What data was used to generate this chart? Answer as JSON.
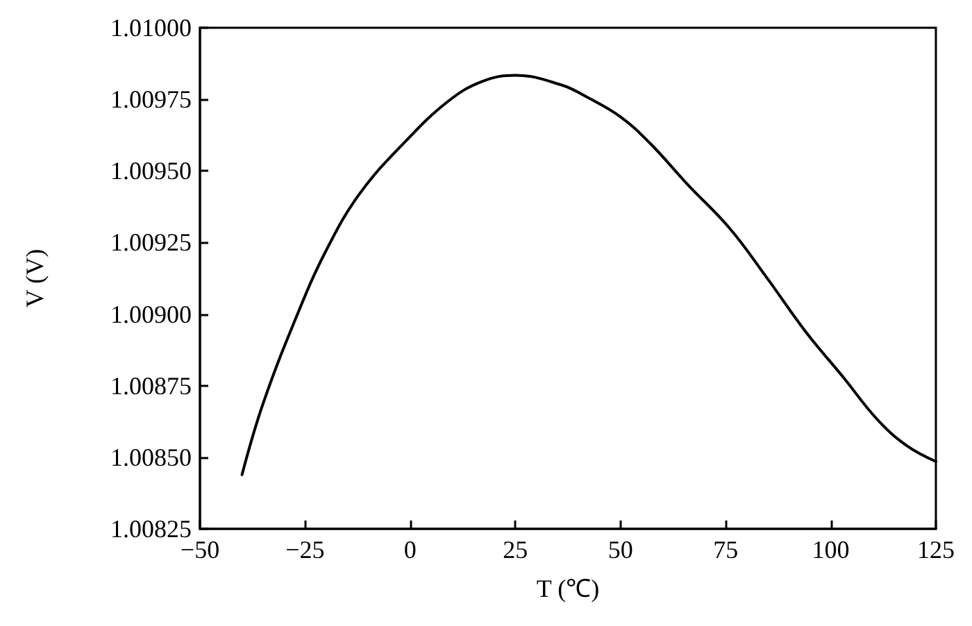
{
  "chart_data": {
    "type": "line",
    "xlabel": "T (℃)",
    "ylabel": "V (V)",
    "x": [
      -40,
      -35,
      -27,
      -20,
      -12,
      -1,
      9,
      17,
      25,
      36,
      42,
      50,
      57,
      66,
      76,
      85,
      94,
      103,
      111,
      118,
      125
    ],
    "series": [
      {
        "color": "#000000",
        "values": [
          1.008439,
          1.008687,
          1.008993,
          1.009222,
          1.009421,
          1.009605,
          1.009743,
          1.009812,
          1.009834,
          1.0098,
          1.009758,
          1.009689,
          1.009597,
          1.009452,
          1.009299,
          1.009123,
          1.008939,
          1.008779,
          1.008633,
          1.008541,
          1.008485
        ]
      }
    ],
    "xlim": [
      -50,
      125
    ],
    "xticks": [
      {
        "value": -50,
        "label": "−50"
      },
      {
        "value": -25,
        "label": "−25"
      },
      0,
      25,
      50,
      75,
      100,
      125
    ],
    "ylim": [
      1.00825,
      1.01
    ],
    "yticks": [
      1.00825,
      {
        "value": 1.0085,
        "label": "1.00850"
      },
      1.00875,
      {
        "value": 1.009,
        "label": "1.00900"
      },
      1.00925,
      {
        "value": 1.0095,
        "label": "1.00950"
      },
      1.00975,
      {
        "value": 1.01,
        "label": "1.01000"
      }
    ],
    "grid": false,
    "marker": "none",
    "line_style": "solid"
  }
}
